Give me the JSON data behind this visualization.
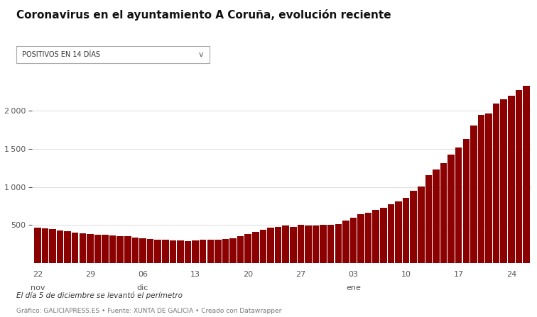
{
  "title": "Coronavirus en el ayuntamiento A Coruña, evolución reciente",
  "dropdown_label": "POSITIVOS EN 14 DÍAS",
  "bar_color": "#8B0000",
  "background_color": "#ffffff",
  "annotation_italic": "El día 5 de diciembre se levantó el perímetro",
  "annotation_source": "Gráfico: GALICIAPRESS.ES • Fuente: XUNTA DE GALICIA • Creado con Datawrapper",
  "ylim": [
    0,
    2500
  ],
  "yticks": [
    500,
    1000,
    1500,
    2000
  ],
  "x_tick_labels": [
    "22",
    "29",
    "06",
    "13",
    "20",
    "27",
    "03",
    "10",
    "17",
    "24"
  ],
  "x_tick_sublabels": [
    "nov",
    "",
    "dic",
    "",
    "",
    "",
    "ene",
    "",
    "",
    ""
  ],
  "tick_positions": [
    0,
    7,
    14,
    21,
    28,
    35,
    42,
    49,
    56,
    63
  ],
  "values": [
    465,
    455,
    445,
    430,
    415,
    405,
    395,
    385,
    375,
    370,
    360,
    355,
    350,
    340,
    330,
    320,
    310,
    305,
    300,
    295,
    290,
    295,
    305,
    310,
    310,
    315,
    325,
    355,
    385,
    410,
    440,
    465,
    475,
    490,
    480,
    500,
    490,
    490,
    500,
    500,
    510,
    560,
    600,
    640,
    660,
    700,
    730,
    775,
    810,
    860,
    950,
    1010,
    1160,
    1230,
    1310,
    1430,
    1515,
    1630,
    1810,
    1950,
    1970,
    2100,
    2150,
    2200,
    2270,
    2330
  ]
}
